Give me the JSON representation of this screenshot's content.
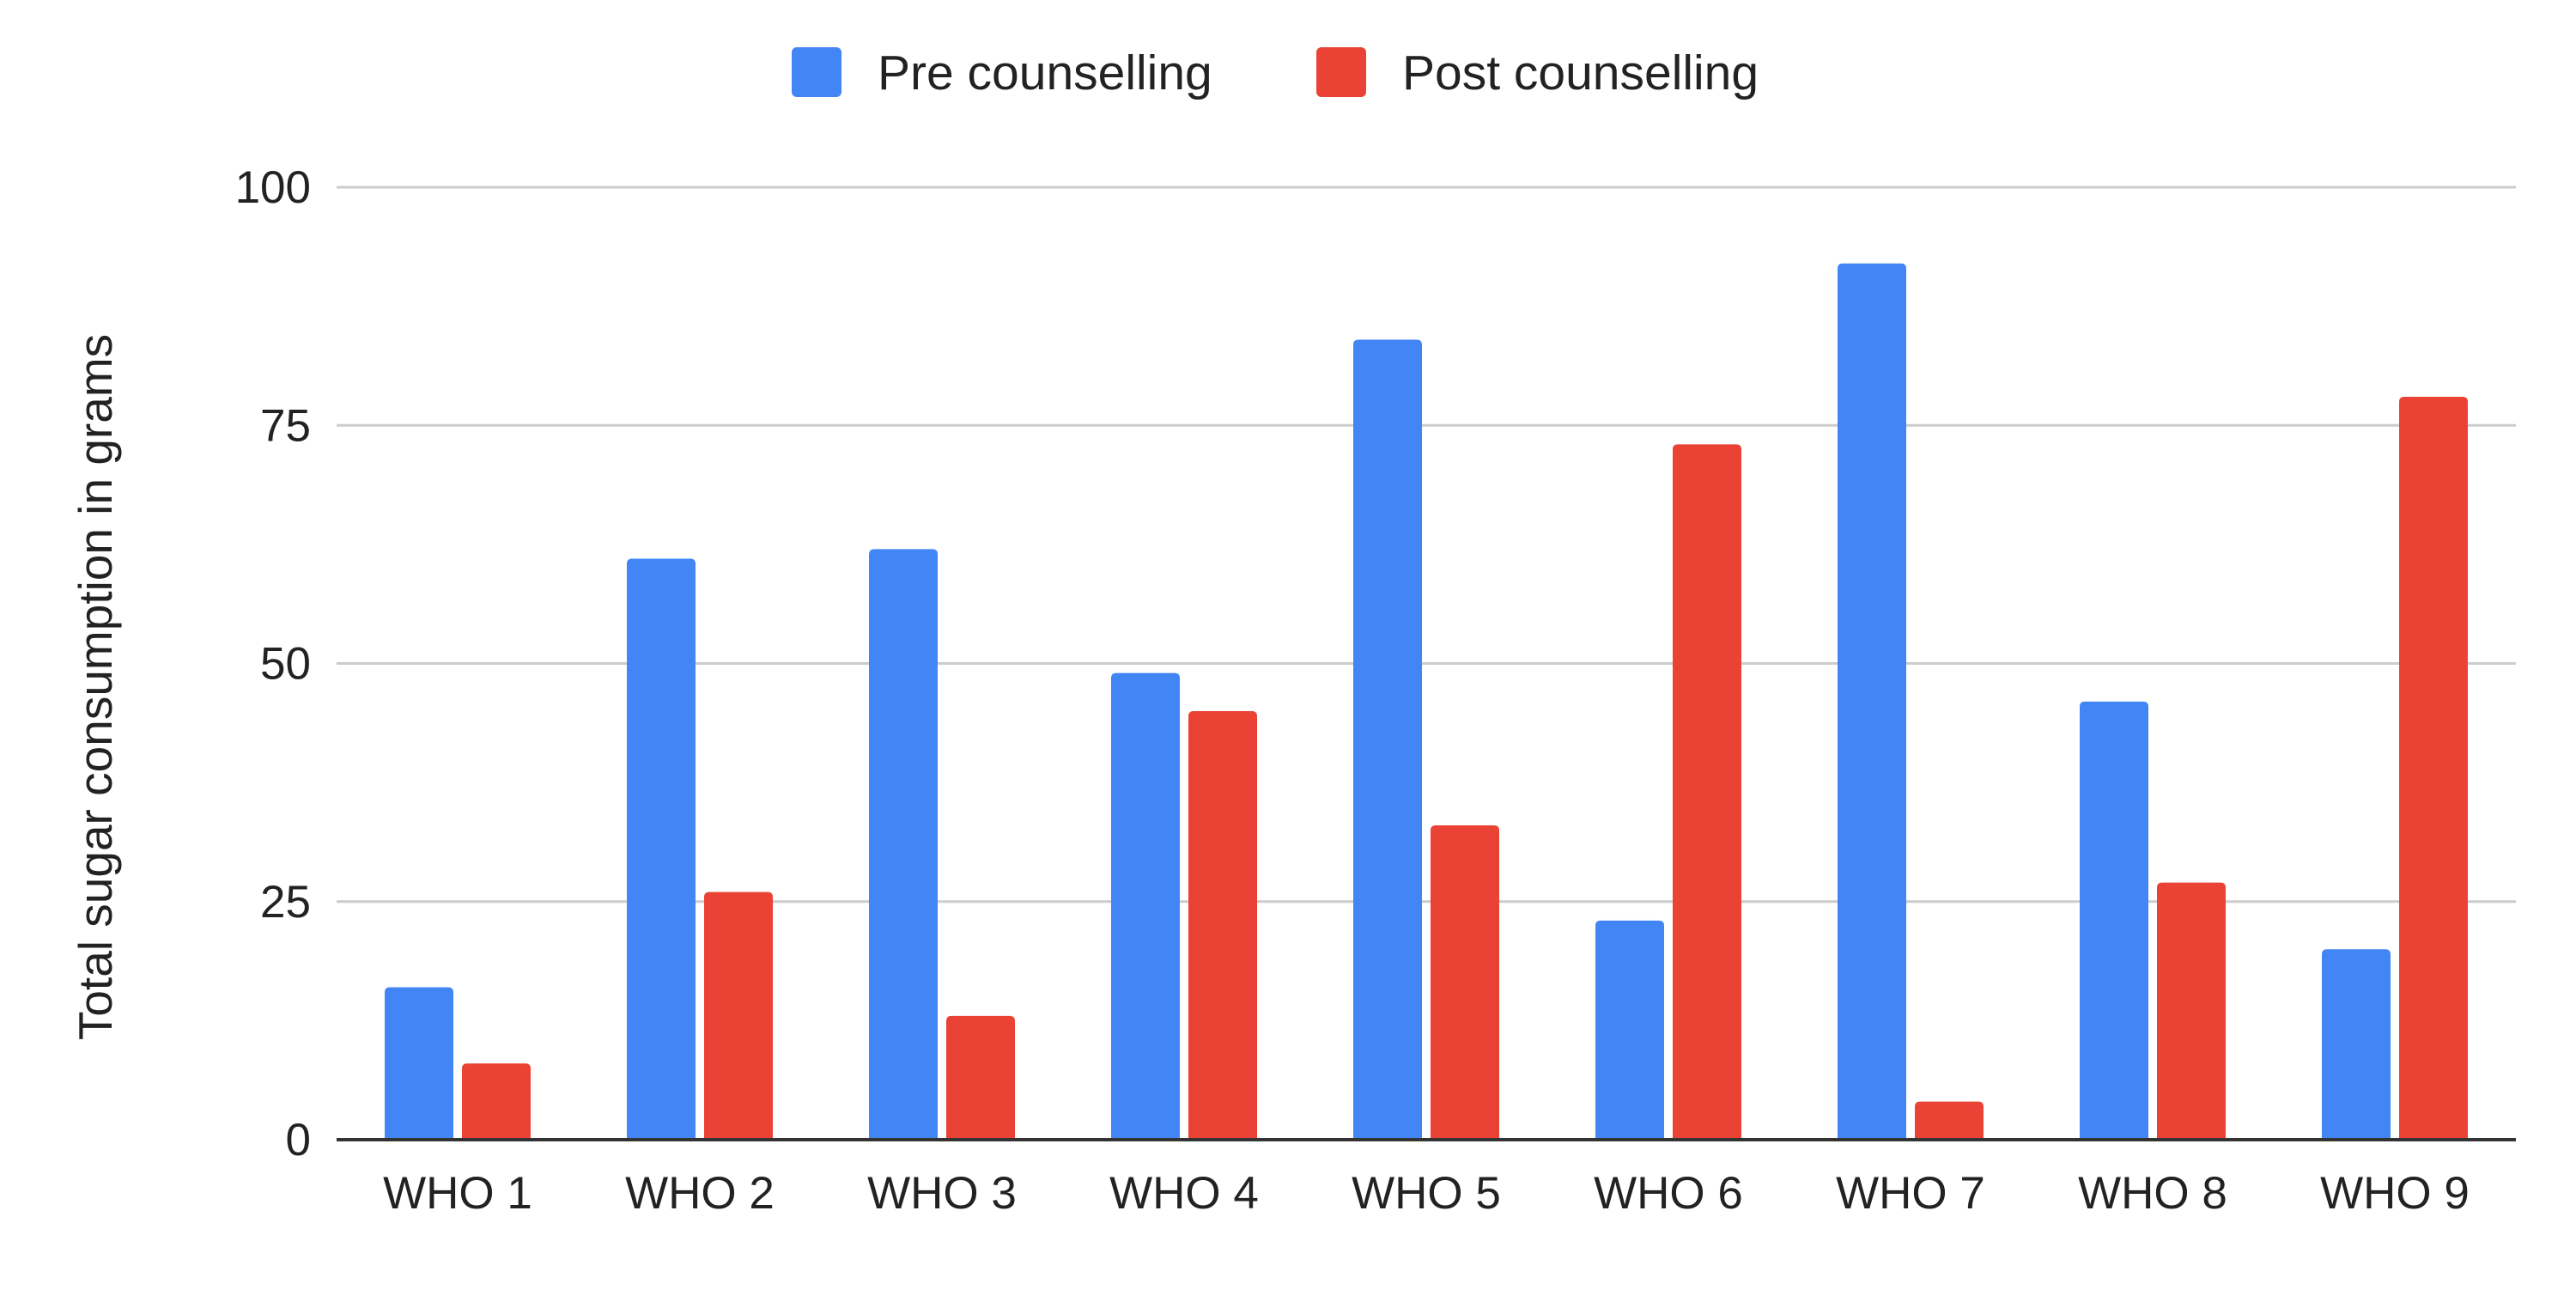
{
  "chart_data": {
    "type": "bar",
    "title": "",
    "xlabel": "",
    "ylabel": "Total sugar consumption in grams",
    "categories": [
      "WHO 1",
      "WHO 2",
      "WHO 3",
      "WHO 4",
      "WHO 5",
      "WHO 6",
      "WHO 7",
      "WHO 8",
      "WHO 9"
    ],
    "series": [
      {
        "name": "Pre counselling",
        "color": "#4285f4",
        "values": [
          16,
          61,
          62,
          49,
          84,
          23,
          92,
          46,
          20
        ]
      },
      {
        "name": "Post counselling",
        "color": "#ea4335",
        "values": [
          8,
          26,
          13,
          45,
          33,
          73,
          4,
          27,
          78
        ]
      }
    ],
    "ylim": [
      0,
      100
    ],
    "yticks": [
      "0",
      "25",
      "50",
      "75",
      "100"
    ],
    "grid": true,
    "legend_position": "top-center"
  }
}
